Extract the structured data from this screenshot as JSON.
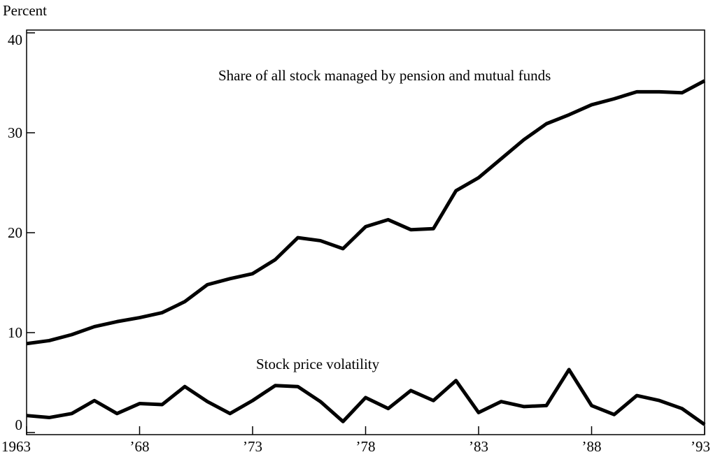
{
  "chart_data": {
    "type": "line",
    "y_axis_label": "Percent",
    "x": [
      1963,
      1964,
      1965,
      1966,
      1967,
      1968,
      1969,
      1970,
      1971,
      1972,
      1973,
      1974,
      1975,
      1976,
      1977,
      1978,
      1979,
      1980,
      1981,
      1982,
      1983,
      1984,
      1985,
      1986,
      1987,
      1988,
      1989,
      1990,
      1991,
      1992,
      1993
    ],
    "series": [
      {
        "name": "Share of all stock managed by pension and mutual funds",
        "color": "#000000",
        "values": [
          8.9,
          9.2,
          9.8,
          10.6,
          11.1,
          11.5,
          12.0,
          13.1,
          14.8,
          15.4,
          15.9,
          17.3,
          19.5,
          19.2,
          18.4,
          20.6,
          21.3,
          20.3,
          20.4,
          24.2,
          25.5,
          27.4,
          29.3,
          30.9,
          31.8,
          32.8,
          33.4,
          34.1,
          34.1,
          34.0,
          35.2
        ]
      },
      {
        "name": "Stock price volatility",
        "color": "#000000",
        "values": [
          1.7,
          1.5,
          1.9,
          3.2,
          1.9,
          2.9,
          2.8,
          4.6,
          3.1,
          1.9,
          3.2,
          4.7,
          4.6,
          3.1,
          1.1,
          3.5,
          2.4,
          4.2,
          3.2,
          5.2,
          2.0,
          3.1,
          2.6,
          2.7,
          6.3,
          2.7,
          1.8,
          3.7,
          3.2,
          2.4,
          0.8
        ]
      }
    ],
    "xlim": [
      1963,
      1993
    ],
    "xticks": [
      {
        "value": 1963,
        "label": "1963"
      },
      {
        "value": 1968,
        "label": "’68"
      },
      {
        "value": 1973,
        "label": "’73"
      },
      {
        "value": 1978,
        "label": "’78"
      },
      {
        "value": 1983,
        "label": "’83"
      },
      {
        "value": 1988,
        "label": "’88"
      },
      {
        "value": 1993,
        "label": "’93"
      }
    ],
    "ylim": [
      0,
      40
    ],
    "yticks": [
      0,
      10,
      20,
      30,
      40
    ]
  }
}
